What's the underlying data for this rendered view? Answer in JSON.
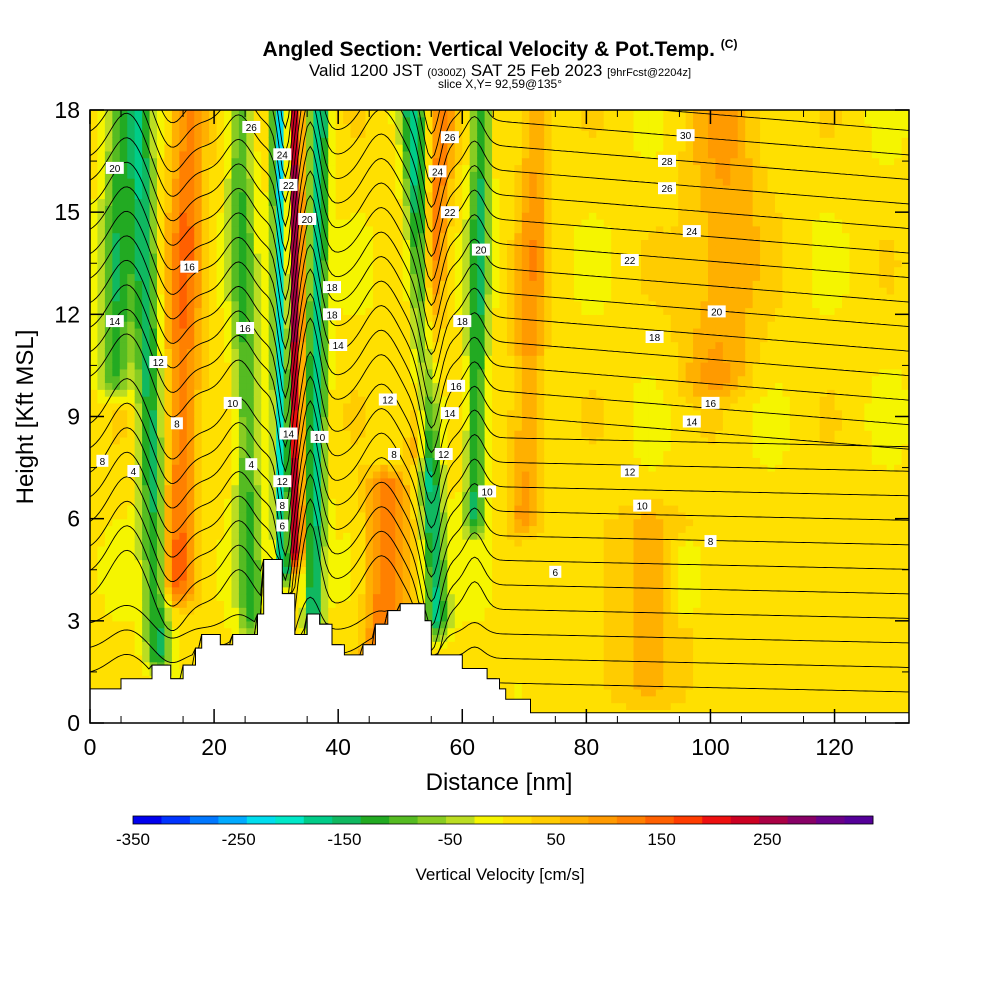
{
  "title": {
    "main": "Angled Section: Vertical Velocity & Pot.Temp.",
    "main_units": "(C)",
    "valid_prefix": "Valid 1200 JST",
    "valid_utc": "(0300Z)",
    "valid_date": "SAT 25 Feb 2023",
    "valid_fcst": "[9hrFcst@2204z]",
    "slice": "slice X,Y= 92,59@135°"
  },
  "chart_data": {
    "type": "heatmap",
    "xlabel": "Distance [nm]",
    "ylabel": "Height [Kft MSL]",
    "xlim": [
      0,
      132
    ],
    "ylim": [
      0,
      18
    ],
    "x_ticks": [
      0,
      20,
      40,
      60,
      80,
      100,
      120
    ],
    "y_ticks": [
      0,
      3,
      6,
      9,
      12,
      15,
      18
    ],
    "colorbar": {
      "label": "Vertical Velocity [cm/s]",
      "range": [
        -350,
        350
      ],
      "tick_labels": [
        "-350",
        "-250",
        "-150",
        "-50",
        "50",
        "150",
        "250"
      ],
      "colors": [
        "#0000ee",
        "#0033ff",
        "#0077ff",
        "#00aaff",
        "#00ddee",
        "#00e8c8",
        "#00cc88",
        "#10b860",
        "#22aa22",
        "#55bb22",
        "#88cc22",
        "#bbdd22",
        "#f5f500",
        "#ffe000",
        "#ffcc00",
        "#ffb000",
        "#ff9a00",
        "#ff8000",
        "#ff6000",
        "#ff3c00",
        "#ee1010",
        "#cc0022",
        "#aa0044",
        "#880066",
        "#6a0088",
        "#550099"
      ]
    },
    "terrain_kft": [
      [
        0,
        1.0
      ],
      [
        5,
        1.0
      ],
      [
        5,
        1.3
      ],
      [
        10,
        1.3
      ],
      [
        10,
        1.7
      ],
      [
        13,
        1.7
      ],
      [
        13,
        1.3
      ],
      [
        15,
        1.3
      ],
      [
        15,
        1.7
      ],
      [
        17,
        1.7
      ],
      [
        17,
        2.2
      ],
      [
        18,
        2.2
      ],
      [
        18,
        2.6
      ],
      [
        21,
        2.6
      ],
      [
        21,
        2.3
      ],
      [
        23,
        2.3
      ],
      [
        23,
        2.6
      ],
      [
        27,
        2.6
      ],
      [
        27,
        3.2
      ],
      [
        28,
        3.2
      ],
      [
        28,
        4.8
      ],
      [
        31,
        4.8
      ],
      [
        31,
        3.8
      ],
      [
        33,
        3.8
      ],
      [
        33,
        2.6
      ],
      [
        35,
        2.6
      ],
      [
        35,
        3.2
      ],
      [
        37,
        3.2
      ],
      [
        37,
        2.9
      ],
      [
        39,
        2.9
      ],
      [
        39,
        2.3
      ],
      [
        41,
        2.3
      ],
      [
        41,
        2.0
      ],
      [
        44,
        2.0
      ],
      [
        44,
        2.3
      ],
      [
        46,
        2.3
      ],
      [
        46,
        2.9
      ],
      [
        48,
        2.9
      ],
      [
        48,
        3.3
      ],
      [
        50,
        3.3
      ],
      [
        50,
        3.5
      ],
      [
        54,
        3.5
      ],
      [
        54,
        3.0
      ],
      [
        55,
        3.0
      ],
      [
        55,
        2.0
      ],
      [
        60,
        2.0
      ],
      [
        60,
        1.6
      ],
      [
        64,
        1.6
      ],
      [
        64,
        1.3
      ],
      [
        66,
        1.3
      ],
      [
        66,
        1.0
      ],
      [
        67,
        1.0
      ],
      [
        67,
        0.7
      ],
      [
        71,
        0.7
      ],
      [
        71,
        0.3
      ],
      [
        132,
        0.3
      ]
    ],
    "w_features": [
      {
        "x": 4,
        "xtop": 5,
        "ybot": 10,
        "ytop": 18,
        "w": 2.5,
        "v": -130
      },
      {
        "x": 11,
        "xtop": 8,
        "ybot": 2,
        "ytop": 18,
        "w": 2.0,
        "v": -160
      },
      {
        "x": 14,
        "xtop": 16,
        "ybot": 4,
        "ytop": 18,
        "w": 2.8,
        "v": 120
      },
      {
        "x": 26,
        "xtop": 24,
        "ybot": 3,
        "ytop": 18,
        "w": 2.0,
        "v": -120
      },
      {
        "x": 31.2,
        "xtop": 30.5,
        "ybot": 4.5,
        "ytop": 18,
        "w": 1.3,
        "v": -230
      },
      {
        "x": 33.2,
        "xtop": 33,
        "ybot": 5,
        "ytop": 18,
        "w": 1.1,
        "v": 250
      },
      {
        "x": 36,
        "xtop": 37,
        "ybot": 3,
        "ytop": 18,
        "w": 1.6,
        "v": -190
      },
      {
        "x": 47,
        "xtop": 48,
        "ybot": 2,
        "ytop": 7,
        "w": 3.2,
        "v": 120
      },
      {
        "x": 56,
        "xtop": 52,
        "ybot": 3,
        "ytop": 18,
        "w": 1.8,
        "v": -180
      },
      {
        "x": 53,
        "xtop": 57,
        "ybot": 8,
        "ytop": 18,
        "w": 2.0,
        "v": 120
      },
      {
        "x": 62,
        "xtop": 63,
        "ybot": 6,
        "ytop": 18,
        "w": 1.6,
        "v": -150
      },
      {
        "x": 70,
        "xtop": 72,
        "ybot": 6,
        "ytop": 18,
        "w": 2.5,
        "v": 80
      },
      {
        "x": 90,
        "xtop": 90,
        "ybot": 1,
        "ytop": 6,
        "w": 6,
        "v": 45
      },
      {
        "x": 96,
        "xtop": 96,
        "ybot": 3.5,
        "ytop": 5,
        "w": 2,
        "v": -60
      },
      {
        "x": 101,
        "xtop": 103,
        "ybot": 10,
        "ytop": 18,
        "w": 6,
        "v": 70
      }
    ],
    "theta_contours": [
      {
        "theta": 6,
        "level_kft": 4.5,
        "label": "6",
        "label_x": 75
      },
      {
        "theta": 8,
        "level_kft": 5.5,
        "label": "8",
        "label_x": 100
      },
      {
        "theta": 10,
        "level_kft": 6.5,
        "label": "10",
        "label_x": 89
      },
      {
        "theta": 12,
        "level_kft": 7.5,
        "label": "12",
        "label_x": 87
      },
      {
        "theta": 14,
        "level_kft": 9.0,
        "label": "14",
        "label_x": 97
      },
      {
        "theta": 16,
        "level_kft": 10.0,
        "label": "16",
        "label_x": 100
      },
      {
        "theta": 18,
        "level_kft": 11.8,
        "label": "18",
        "label_x": 91
      },
      {
        "theta": 20,
        "level_kft": 12.7,
        "label": "20",
        "label_x": 101
      },
      {
        "theta": 22,
        "level_kft": 14.0,
        "label": "22",
        "label_x": 87
      },
      {
        "theta": 24,
        "level_kft": 15.0,
        "label": "24",
        "label_x": 97
      },
      {
        "theta": 26,
        "level_kft": 16.2,
        "label": "26",
        "label_x": 93
      },
      {
        "theta": 28,
        "level_kft": 17.0,
        "label": "28",
        "label_x": 93
      },
      {
        "theta": 30,
        "level_kft": 17.8,
        "label": "30",
        "label_x": 96
      }
    ],
    "contour_labels": [
      {
        "text": "20",
        "x": 4,
        "y": 16.3
      },
      {
        "text": "26",
        "x": 26,
        "y": 17.5
      },
      {
        "text": "24",
        "x": 31,
        "y": 16.7
      },
      {
        "text": "22",
        "x": 32,
        "y": 15.8
      },
      {
        "text": "20",
        "x": 35,
        "y": 14.8
      },
      {
        "text": "16",
        "x": 16,
        "y": 13.4
      },
      {
        "text": "14",
        "x": 4,
        "y": 11.8
      },
      {
        "text": "16",
        "x": 25,
        "y": 11.6
      },
      {
        "text": "12",
        "x": 11,
        "y": 10.6
      },
      {
        "text": "10",
        "x": 23,
        "y": 9.4
      },
      {
        "text": "8",
        "x": 14,
        "y": 8.8
      },
      {
        "text": "8",
        "x": 2,
        "y": 7.7
      },
      {
        "text": "4",
        "x": 7,
        "y": 7.4
      },
      {
        "text": "4",
        "x": 26,
        "y": 7.6
      },
      {
        "text": "14",
        "x": 32,
        "y": 8.5
      },
      {
        "text": "10",
        "x": 37,
        "y": 8.4
      },
      {
        "text": "12",
        "x": 31,
        "y": 7.1
      },
      {
        "text": "8",
        "x": 31,
        "y": 6.4
      },
      {
        "text": "6",
        "x": 31,
        "y": 5.8
      },
      {
        "text": "18",
        "x": 39,
        "y": 12.8
      },
      {
        "text": "18",
        "x": 39,
        "y": 12.0
      },
      {
        "text": "14",
        "x": 40,
        "y": 11.1
      },
      {
        "text": "12",
        "x": 48,
        "y": 9.5
      },
      {
        "text": "8",
        "x": 49,
        "y": 7.9
      },
      {
        "text": "26",
        "x": 58,
        "y": 17.2
      },
      {
        "text": "24",
        "x": 56,
        "y": 16.2
      },
      {
        "text": "22",
        "x": 58,
        "y": 15.0
      },
      {
        "text": "20",
        "x": 63,
        "y": 13.9
      },
      {
        "text": "18",
        "x": 60,
        "y": 11.8
      },
      {
        "text": "16",
        "x": 59,
        "y": 9.9
      },
      {
        "text": "14",
        "x": 58,
        "y": 9.1
      },
      {
        "text": "12",
        "x": 57,
        "y": 7.9
      },
      {
        "text": "10",
        "x": 64,
        "y": 6.8
      }
    ]
  }
}
